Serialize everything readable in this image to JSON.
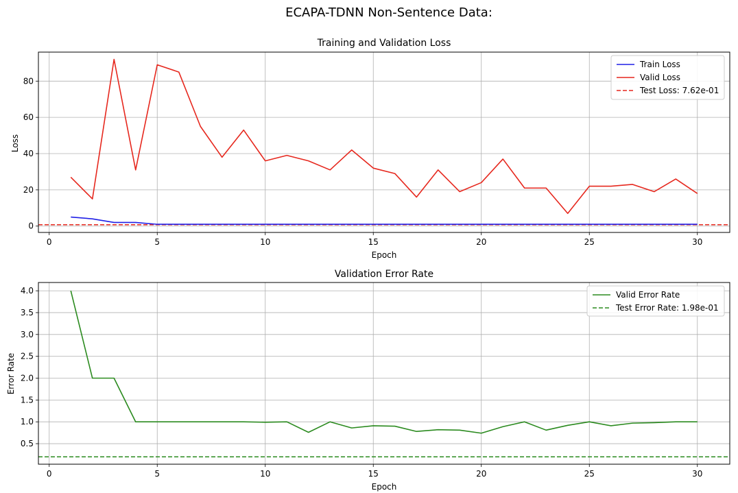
{
  "suptitle": "ECAPA-TDNN Non-Sentence Data:",
  "colors": {
    "train": "#1f1fe6",
    "valid": "#e6271d",
    "error": "#2a8a1e",
    "grid": "#b0b0b0"
  },
  "chart_data": [
    {
      "type": "line",
      "title": "Training and Validation Loss",
      "xlabel": "Epoch",
      "ylabel": "Loss",
      "xlim": [
        -0.5,
        31.5
      ],
      "ylim": [
        -3.5,
        96
      ],
      "xticks": [
        0,
        5,
        10,
        15,
        20,
        25,
        30
      ],
      "yticks": [
        0,
        20,
        40,
        60,
        80
      ],
      "ytick_labels": [
        "0",
        "20",
        "40",
        "60",
        "80"
      ],
      "grid": true,
      "legend_position": "top-right",
      "x": [
        1,
        2,
        3,
        4,
        5,
        6,
        7,
        8,
        9,
        10,
        11,
        12,
        13,
        14,
        15,
        16,
        17,
        18,
        19,
        20,
        21,
        22,
        23,
        24,
        25,
        26,
        27,
        28,
        29,
        30
      ],
      "series": [
        {
          "name": "Train Loss",
          "color": "#1f1fe6",
          "style": "solid",
          "values": [
            5,
            4,
            2,
            2,
            1,
            1,
            1,
            1,
            1,
            1,
            1,
            1,
            1,
            1,
            1,
            1,
            1,
            1,
            1,
            1,
            1,
            1,
            1,
            1,
            1,
            1,
            1,
            1,
            1,
            1
          ]
        },
        {
          "name": "Valid Loss",
          "color": "#e6271d",
          "style": "solid",
          "values": [
            27,
            15,
            92,
            31,
            89,
            85,
            55,
            38,
            53,
            36,
            39,
            36,
            31,
            42,
            32,
            29,
            16,
            31,
            19,
            24,
            37,
            21,
            21,
            7,
            22,
            22,
            23,
            19,
            26,
            18
          ]
        }
      ],
      "hlines": [
        {
          "name": "Test Loss: 7.62e-01",
          "color": "#e6271d",
          "style": "dashed",
          "value": 0.762
        }
      ]
    },
    {
      "type": "line",
      "title": "Validation Error Rate",
      "xlabel": "Epoch",
      "ylabel": "Error Rate",
      "xlim": [
        -0.5,
        31.5
      ],
      "ylim": [
        0.03,
        4.19
      ],
      "xticks": [
        0,
        5,
        10,
        15,
        20,
        25,
        30
      ],
      "yticks": [
        0.5,
        1.0,
        1.5,
        2.0,
        2.5,
        3.0,
        3.5,
        4.0
      ],
      "ytick_labels": [
        "0.5",
        "1.0",
        "1.5",
        "2.0",
        "2.5",
        "3.0",
        "3.5",
        "4.0"
      ],
      "grid": true,
      "legend_position": "top-right",
      "x": [
        1,
        2,
        3,
        4,
        5,
        6,
        7,
        8,
        9,
        10,
        11,
        12,
        13,
        14,
        15,
        16,
        17,
        18,
        19,
        20,
        21,
        22,
        23,
        24,
        25,
        26,
        27,
        28,
        29,
        30
      ],
      "series": [
        {
          "name": "Valid Error Rate",
          "color": "#2a8a1e",
          "style": "solid",
          "values": [
            4.0,
            2.0,
            2.0,
            1.0,
            1.0,
            1.0,
            1.0,
            1.0,
            1.0,
            0.99,
            1.0,
            0.76,
            1.0,
            0.86,
            0.91,
            0.9,
            0.78,
            0.82,
            0.81,
            0.74,
            0.89,
            1.0,
            0.81,
            0.92,
            1.0,
            0.91,
            0.97,
            0.98,
            1.0,
            1.0
          ]
        }
      ],
      "hlines": [
        {
          "name": "Test Error Rate: 1.98e-01",
          "color": "#2a8a1e",
          "style": "dashed",
          "value": 0.198
        }
      ]
    }
  ]
}
